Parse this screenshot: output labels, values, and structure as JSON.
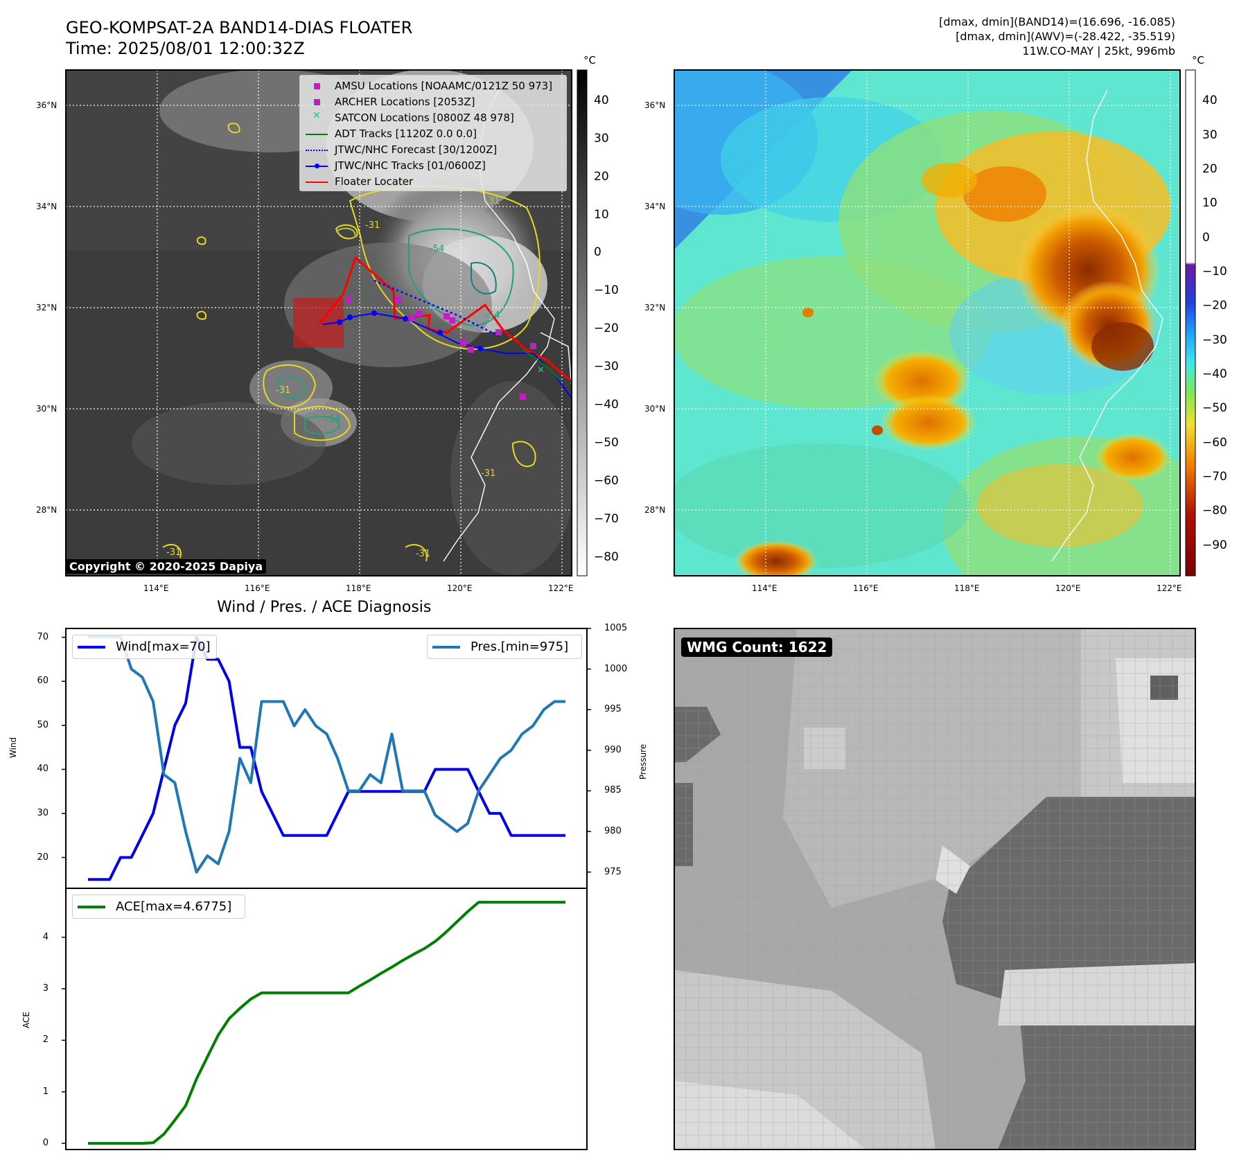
{
  "header": {
    "title_line1": "GEO-KOMPSAT-2A BAND14-DIAS FLOATER",
    "title_line2": "Time: 2025/08/01 12:00:32Z",
    "right_line1": "[dmax, dmin](BAND14)=(16.696, -16.085)",
    "right_line2": "[dmax, dmin](AWV)=(-28.422, -35.519)",
    "right_line3": "11W.CO-MAY | 25kt, 996mb"
  },
  "map": {
    "lon_labels": [
      "114°E",
      "116°E",
      "118°E",
      "120°E",
      "122°E"
    ],
    "lat_labels": [
      "36°N",
      "34°N",
      "32°N",
      "30°N",
      "28°N"
    ],
    "copyright": "Copyright © 2020-2025 Dapiya",
    "legend": [
      {
        "label": "AMSU Locations [NOAAMC/0121Z 50 973]",
        "color": "#c020c0",
        "marker": "square"
      },
      {
        "label": "ARCHER Locations [2053Z]",
        "color": "#c020c0",
        "marker": "square"
      },
      {
        "label": "SATCON Locations [0800Z 48 978]",
        "color": "#20c0b0",
        "marker": "x"
      },
      {
        "label": "ADT Tracks [1120Z 0.0 0.0]",
        "color": "#008000",
        "marker": "line"
      },
      {
        "label": "JTWC/NHC Forecast [30/1200Z]",
        "color": "#0000ff",
        "marker": "dotted"
      },
      {
        "label": "JTWC/NHC Tracks [01/0600Z]",
        "color": "#0000ff",
        "marker": "line-dot"
      },
      {
        "label": "Floater Locater",
        "color": "#ff0000",
        "marker": "line"
      }
    ],
    "contour_labels": [
      "-31",
      "-54",
      "-54",
      "-31",
      "-31",
      "-54",
      "-31",
      "-31",
      "-31"
    ]
  },
  "colorbar_left": {
    "unit": "°C",
    "ticks": [
      "40",
      "30",
      "20",
      "10",
      "0",
      "−10",
      "−20",
      "−30",
      "−40",
      "−50",
      "−60",
      "−70",
      "−80"
    ]
  },
  "colorbar_right": {
    "unit": "°C",
    "ticks": [
      "40",
      "30",
      "20",
      "10",
      "0",
      "−10",
      "−20",
      "−30",
      "−40",
      "−50",
      "−60",
      "−70",
      "−80",
      "−90"
    ]
  },
  "diag_title": "Wind / Pres. / ACE Diagnosis",
  "wmg_label": "WMG Count: 1622",
  "chart_data": [
    {
      "type": "line",
      "title": "Wind / Pres. / ACE Diagnosis",
      "ylabel": "Wind",
      "ylabel_right": "Pressure",
      "ylim": [
        13,
        72
      ],
      "ylim_right": [
        973,
        1005
      ],
      "yticks": [
        20,
        30,
        40,
        50,
        60,
        70
      ],
      "yticks_right": [
        975,
        980,
        985,
        990,
        995,
        1000,
        1005
      ],
      "series": [
        {
          "name": "Wind[max=70]",
          "axis": "left",
          "color": "#0000ee",
          "values": [
            15,
            15,
            15,
            20,
            20,
            25,
            30,
            40,
            50,
            55,
            70,
            65,
            65,
            60,
            45,
            45,
            35,
            30,
            25,
            25,
            25,
            25,
            25,
            30,
            35,
            35,
            35,
            35,
            35,
            35,
            35,
            35,
            40,
            40,
            40,
            40,
            35,
            30,
            30,
            25,
            25,
            25,
            25,
            25,
            25
          ]
        },
        {
          "name": "Pres.[min=975]",
          "axis": "right",
          "color": "#1f77b4",
          "values": [
            1004,
            1004,
            1004,
            1004,
            1000,
            999,
            996,
            987,
            986,
            980,
            975,
            977,
            976,
            980,
            989,
            986,
            996,
            996,
            996,
            993,
            995,
            993,
            992,
            989,
            985,
            985,
            987,
            986,
            992,
            985,
            985,
            985,
            982,
            981,
            980,
            981,
            985,
            987,
            989,
            990,
            992,
            993,
            995,
            996,
            996
          ]
        }
      ]
    },
    {
      "type": "line",
      "ylabel": "ACE",
      "ylim": [
        -0.12,
        4.95
      ],
      "yticks": [
        0,
        1,
        2,
        3,
        4
      ],
      "series": [
        {
          "name": "ACE[max=4.6775]",
          "color": "#008000",
          "values": [
            0,
            0,
            0,
            0,
            0,
            0,
            0.01,
            0.18,
            0.45,
            0.73,
            1.25,
            1.68,
            2.1,
            2.42,
            2.62,
            2.8,
            2.92,
            2.92,
            2.92,
            2.92,
            2.92,
            2.92,
            2.92,
            2.92,
            2.92,
            3.05,
            3.17,
            3.3,
            3.42,
            3.55,
            3.67,
            3.78,
            3.92,
            4.1,
            4.3,
            4.5,
            4.68,
            4.68,
            4.68,
            4.68,
            4.68,
            4.68,
            4.68,
            4.68,
            4.68
          ]
        }
      ]
    }
  ]
}
